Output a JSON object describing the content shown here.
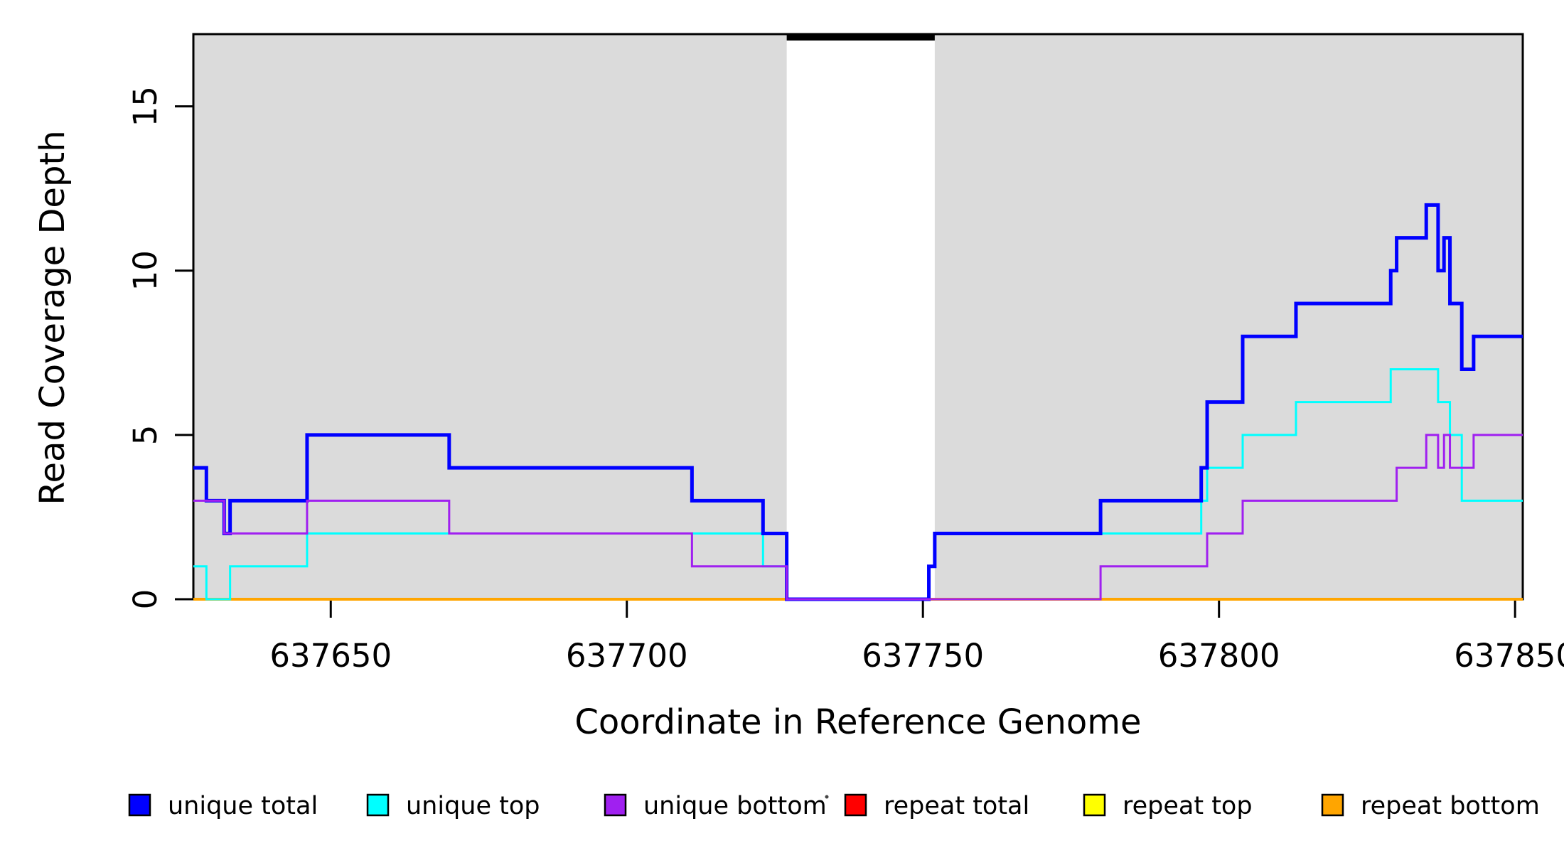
{
  "figure": {
    "x_axis": {
      "title": "Coordinate in Reference Genome",
      "tick_labels": [
        "637650",
        "637700",
        "637750",
        "637800",
        "637850"
      ]
    },
    "y_axis": {
      "title": "Read Coverage Depth",
      "tick_labels": [
        "0",
        "5",
        "10",
        "15"
      ]
    },
    "legend": {
      "items": [
        {
          "label": "unique total",
          "color": "#0000FF"
        },
        {
          "label": "unique top",
          "color": "#00FFFF"
        },
        {
          "label": "unique bottom",
          "color": "#A020F0"
        },
        {
          "label": "repeat total",
          "color": "#FF0000"
        },
        {
          "label": "repeat top",
          "color": "#FFFF00"
        },
        {
          "label": "repeat bottom",
          "color": "#FFA500"
        }
      ]
    }
  },
  "chart_data": {
    "type": "line",
    "subtype": "step",
    "title": "",
    "xlabel": "Coordinate in Reference Genome",
    "ylabel": "Read Coverage Depth",
    "xlim": [
      637626.8,
      637851.3
    ],
    "ylim": [
      0,
      17.2
    ],
    "x_ticks": [
      637650,
      637700,
      637750,
      637800,
      637850
    ],
    "y_ticks": [
      0,
      5,
      10,
      15
    ],
    "grid": false,
    "legend_position": "bottom",
    "shaded_color": "#DBDBDB",
    "shaded_regions": [
      [
        637626.8,
        637727
      ],
      [
        637752,
        637851.3
      ]
    ],
    "repeat_gap_region": [
      637727,
      637752
    ],
    "series": [
      {
        "name": "repeat total",
        "color": "#FF0000",
        "width": 3,
        "steps": [
          [
            637626.8,
            0
          ],
          [
            637851.3,
            0
          ]
        ]
      },
      {
        "name": "repeat top",
        "color": "#FFFF00",
        "width": 3,
        "steps": [
          [
            637626.8,
            0
          ],
          [
            637851.3,
            0
          ]
        ]
      },
      {
        "name": "repeat bottom",
        "color": "#FFA500",
        "width": 4,
        "steps": [
          [
            637626.8,
            0
          ],
          [
            637851.3,
            0
          ]
        ]
      },
      {
        "name": "unique top",
        "color": "#00FFFF",
        "width": 3,
        "steps": [
          [
            637626.8,
            1
          ],
          [
            637629,
            0
          ],
          [
            637633,
            1
          ],
          [
            637646,
            2
          ],
          [
            637723,
            1
          ],
          [
            637727,
            0
          ],
          [
            637751,
            1
          ],
          [
            637752,
            2
          ],
          [
            637797,
            3
          ],
          [
            637798,
            4
          ],
          [
            637804,
            5
          ],
          [
            637813,
            6
          ],
          [
            637829,
            7
          ],
          [
            637837,
            6
          ],
          [
            637839,
            5
          ],
          [
            637841,
            3
          ],
          [
            637851.3,
            3
          ]
        ]
      },
      {
        "name": "unique total",
        "color": "#0000FF",
        "width": 5,
        "steps": [
          [
            637626.8,
            4
          ],
          [
            637629,
            3
          ],
          [
            637632,
            2
          ],
          [
            637633,
            3
          ],
          [
            637646,
            5
          ],
          [
            637670,
            4
          ],
          [
            637711,
            3
          ],
          [
            637723,
            2
          ],
          [
            637727,
            0
          ],
          [
            637751,
            1
          ],
          [
            637752,
            2
          ],
          [
            637780,
            3
          ],
          [
            637797,
            4
          ],
          [
            637798,
            6
          ],
          [
            637804,
            8
          ],
          [
            637813,
            9
          ],
          [
            637829,
            10
          ],
          [
            637830,
            11
          ],
          [
            637835,
            12
          ],
          [
            637837,
            10
          ],
          [
            637838,
            11
          ],
          [
            637839,
            9
          ],
          [
            637841,
            7
          ],
          [
            637843,
            8
          ],
          [
            637851.3,
            8
          ]
        ]
      },
      {
        "name": "unique bottom",
        "color": "#A020F0",
        "width": 3,
        "steps": [
          [
            637626.8,
            3
          ],
          [
            637632,
            2
          ],
          [
            637646,
            3
          ],
          [
            637670,
            2
          ],
          [
            637711,
            1
          ],
          [
            637727,
            0
          ],
          [
            637780,
            1
          ],
          [
            637798,
            2
          ],
          [
            637804,
            3
          ],
          [
            637830,
            4
          ],
          [
            637835,
            5
          ],
          [
            637837,
            4
          ],
          [
            637838,
            5
          ],
          [
            637839,
            4
          ],
          [
            637843,
            5
          ],
          [
            637851.3,
            5
          ]
        ]
      }
    ]
  }
}
